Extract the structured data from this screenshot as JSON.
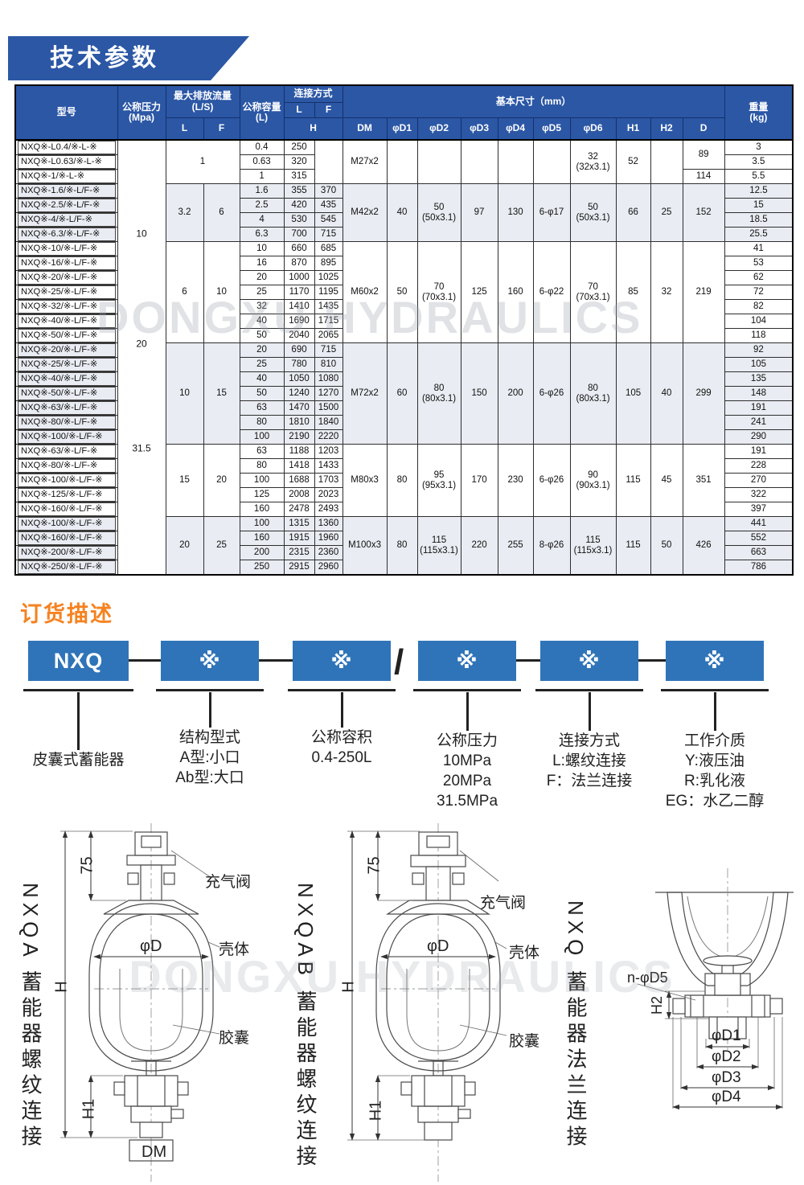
{
  "banner": {
    "title": "技术参数"
  },
  "watermark": "DONGXU HYDRAULICS",
  "table": {
    "headers": {
      "model": "型号",
      "pressure": "公称压力",
      "pressure_unit": "(Mpa)",
      "flow": "最大排放流量",
      "flow_unit": "(L/S)",
      "l": "L",
      "f": "F",
      "capacity": "公称容量",
      "capacity_unit": "(L)",
      "conn": "连接方式",
      "h": "H",
      "dims_title": "基本尺寸（mm）",
      "dim_cols": [
        "DM",
        "φD1",
        "φD2",
        "φD3",
        "φD4",
        "φD5",
        "φD6",
        "H1",
        "H2",
        "D"
      ],
      "weight": "重量",
      "weight_unit": "(kg)"
    },
    "pressure_labels": [
      "10",
      "20",
      "31.5"
    ],
    "groups": [
      {
        "shaded": false,
        "flow_merged": "1",
        "hf_merged": true,
        "dims": {
          "dm": "M27x2",
          "d1": "",
          "d2": "",
          "d3": "",
          "d4": "",
          "d5": "",
          "d6": [
            "32",
            "(32x3.1)"
          ],
          "h1": "52",
          "h2": ""
        },
        "d_cells": [
          {
            "at": 0,
            "v": "89",
            "span": 2
          },
          {
            "at": 2,
            "v": "114",
            "span": 1
          }
        ],
        "rows": [
          {
            "model": "NXQ※-L0.4/※-L-※",
            "cap": "0.4",
            "hl": "250",
            "wt": "3"
          },
          {
            "model": "NXQ※-L0.63/※-L-※",
            "cap": "0.63",
            "hl": "320",
            "wt": "3.5"
          },
          {
            "model": "NXQ※-1/※-L-※",
            "cap": "1",
            "hl": "315",
            "wt": "5.5"
          }
        ]
      },
      {
        "shaded": true,
        "flow_l": "3.2",
        "flow_f": "6",
        "dims": {
          "dm": "M42x2",
          "d1": "40",
          "d2": [
            "50",
            "(50x3.1)"
          ],
          "d3": "97",
          "d4": "130",
          "d5": "6-φ17",
          "d6": [
            "50",
            "(50x3.1)"
          ],
          "h1": "66",
          "h2": "25",
          "d": "152"
        },
        "rows": [
          {
            "model": "NXQ※-1.6/※-L/F-※",
            "cap": "1.6",
            "hl": "355",
            "hf": "370",
            "wt": "12.5"
          },
          {
            "model": "NXQ※-2.5/※-L/F-※",
            "cap": "2.5",
            "hl": "420",
            "hf": "435",
            "wt": "15"
          },
          {
            "model": "NXQ※-4/※-L/F-※",
            "cap": "4",
            "hl": "530",
            "hf": "545",
            "wt": "18.5"
          },
          {
            "model": "NXQ※-6.3/※-L/F-※",
            "cap": "6.3",
            "hl": "700",
            "hf": "715",
            "wt": "25.5"
          }
        ]
      },
      {
        "shaded": false,
        "flow_l": "6",
        "flow_f": "10",
        "dims": {
          "dm": "M60x2",
          "d1": "50",
          "d2": [
            "70",
            "(70x3.1)"
          ],
          "d3": "125",
          "d4": "160",
          "d5": "6-φ22",
          "d6": [
            "70",
            "(70x3.1)"
          ],
          "h1": "85",
          "h2": "32",
          "d": "219"
        },
        "rows": [
          {
            "model": "NXQ※-10/※-L/F-※",
            "cap": "10",
            "hl": "660",
            "hf": "685",
            "wt": "41"
          },
          {
            "model": "NXQ※-16/※-L/F-※",
            "cap": "16",
            "hl": "870",
            "hf": "895",
            "wt": "53"
          },
          {
            "model": "NXQ※-20/※-L/F-※",
            "cap": "20",
            "hl": "1000",
            "hf": "1025",
            "wt": "62"
          },
          {
            "model": "NXQ※-25/※-L/F-※",
            "cap": "25",
            "hl": "1170",
            "hf": "1195",
            "wt": "72"
          },
          {
            "model": "NXQ※-32/※-L/F-※",
            "cap": "32",
            "hl": "1410",
            "hf": "1435",
            "wt": "82"
          },
          {
            "model": "NXQ※-40/※-L/F-※",
            "cap": "40",
            "hl": "1690",
            "hf": "1715",
            "wt": "104"
          },
          {
            "model": "NXQ※-50/※-L/F-※",
            "cap": "50",
            "hl": "2040",
            "hf": "2065",
            "wt": "118"
          }
        ]
      },
      {
        "shaded": true,
        "flow_l": "10",
        "flow_f": "15",
        "dims": {
          "dm": "M72x2",
          "d1": "60",
          "d2": [
            "80",
            "(80x3.1)"
          ],
          "d3": "150",
          "d4": "200",
          "d5": "6-φ26",
          "d6": [
            "80",
            "(80x3.1)"
          ],
          "h1": "105",
          "h2": "40",
          "d": "299"
        },
        "rows": [
          {
            "model": "NXQ※-20/※-L/F-※",
            "cap": "20",
            "hl": "690",
            "hf": "715",
            "wt": "92"
          },
          {
            "model": "NXQ※-25/※-L/F-※",
            "cap": "25",
            "hl": "780",
            "hf": "810",
            "wt": "105"
          },
          {
            "model": "NXQ※-40/※-L/F-※",
            "cap": "40",
            "hl": "1050",
            "hf": "1080",
            "wt": "135"
          },
          {
            "model": "NXQ※-50/※-L/F-※",
            "cap": "50",
            "hl": "1240",
            "hf": "1270",
            "wt": "148"
          },
          {
            "model": "NXQ※-63/※-L/F-※",
            "cap": "63",
            "hl": "1470",
            "hf": "1500",
            "wt": "191"
          },
          {
            "model": "NXQ※-80/※-L/F-※",
            "cap": "80",
            "hl": "1810",
            "hf": "1840",
            "wt": "241"
          },
          {
            "model": "NXQ※-100/※-L/F-※",
            "cap": "100",
            "hl": "2190",
            "hf": "2220",
            "wt": "290"
          }
        ]
      },
      {
        "shaded": false,
        "flow_l": "15",
        "flow_f": "20",
        "dims": {
          "dm": "M80x3",
          "d1": "80",
          "d2": [
            "95",
            "(95x3.1)"
          ],
          "d3": "170",
          "d4": "230",
          "d5": "6-φ26",
          "d6": [
            "90",
            "(90x3.1)"
          ],
          "h1": "115",
          "h2": "45",
          "d": "351"
        },
        "rows": [
          {
            "model": "NXQ※-63/※-L/F-※",
            "cap": "63",
            "hl": "1188",
            "hf": "1203",
            "wt": "191"
          },
          {
            "model": "NXQ※-80/※-L/F-※",
            "cap": "80",
            "hl": "1418",
            "hf": "1433",
            "wt": "228"
          },
          {
            "model": "NXQ※-100/※-L/F-※",
            "cap": "100",
            "hl": "1688",
            "hf": "1703",
            "wt": "270"
          },
          {
            "model": "NXQ※-125/※-L/F-※",
            "cap": "125",
            "hl": "2008",
            "hf": "2023",
            "wt": "322"
          },
          {
            "model": "NXQ※-160/※-L/F-※",
            "cap": "160",
            "hl": "2478",
            "hf": "2493",
            "wt": "397"
          }
        ]
      },
      {
        "shaded": true,
        "flow_l": "20",
        "flow_f": "25",
        "dims": {
          "dm": "M100x3",
          "d1": "80",
          "d2": [
            "115",
            "(115x3.1)"
          ],
          "d3": "220",
          "d4": "255",
          "d5": "8-φ26",
          "d6": [
            "115",
            "(115x3.1)"
          ],
          "h1": "115",
          "h2": "50",
          "d": "426"
        },
        "rows": [
          {
            "model": "NXQ※-100/※-L/F-※",
            "cap": "100",
            "hl": "1315",
            "hf": "1360",
            "wt": "441"
          },
          {
            "model": "NXQ※-160/※-L/F-※",
            "cap": "160",
            "hl": "1915",
            "hf": "1960",
            "wt": "552"
          },
          {
            "model": "NXQ※-200/※-L/F-※",
            "cap": "200",
            "hl": "2315",
            "hf": "2360",
            "wt": "663"
          },
          {
            "model": "NXQ※-250/※-L/F-※",
            "cap": "250",
            "hl": "2915",
            "hf": "2960",
            "wt": "786"
          }
        ]
      }
    ]
  },
  "ordering": {
    "heading": "订货描述",
    "slash": "/",
    "items": [
      {
        "box": "NXQ",
        "lines": [
          "皮囊式蓄能器"
        ]
      },
      {
        "box": "※",
        "lines": [
          "结构型式",
          "A型:小口",
          "Ab型:大口"
        ]
      },
      {
        "box": "※",
        "lines": [
          "公称容积",
          "0.4-250L"
        ]
      },
      {
        "box": "※",
        "lines": [
          "公称压力",
          "10MPa",
          "20MPa",
          "31.5MPa"
        ]
      },
      {
        "box": "※",
        "lines": [
          "连接方式",
          "L:螺纹连接",
          "F：法兰连接"
        ]
      },
      {
        "box": "※",
        "lines": [
          "工作介质",
          "Y:液压油",
          "R:乳化液",
          "EG：水乙二醇"
        ]
      }
    ]
  },
  "drawings": {
    "left": {
      "title": "NXQA 蓄能器螺纹连接",
      "labels": {
        "dim75": "75",
        "h": "H",
        "h1": "H1",
        "dm": "DM",
        "phid": "φD",
        "valve": "充气阀",
        "shell": "壳体",
        "bladder": "胶囊"
      }
    },
    "middle": {
      "title": "NXQAB 蓄能器螺纹连接",
      "labels": {
        "dim75": "75",
        "h": "H",
        "h1": "H1",
        "phid": "φD",
        "valve": "充气阀",
        "shell": "壳体",
        "bladder": "胶囊"
      }
    },
    "right": {
      "title": "NXQ 蓄能器法兰连接",
      "labels": {
        "nphid5": "n-φD5",
        "h2": "H2",
        "d1": "φD1",
        "d2": "φD2",
        "d3": "φD3",
        "d4": "φD4"
      }
    }
  }
}
